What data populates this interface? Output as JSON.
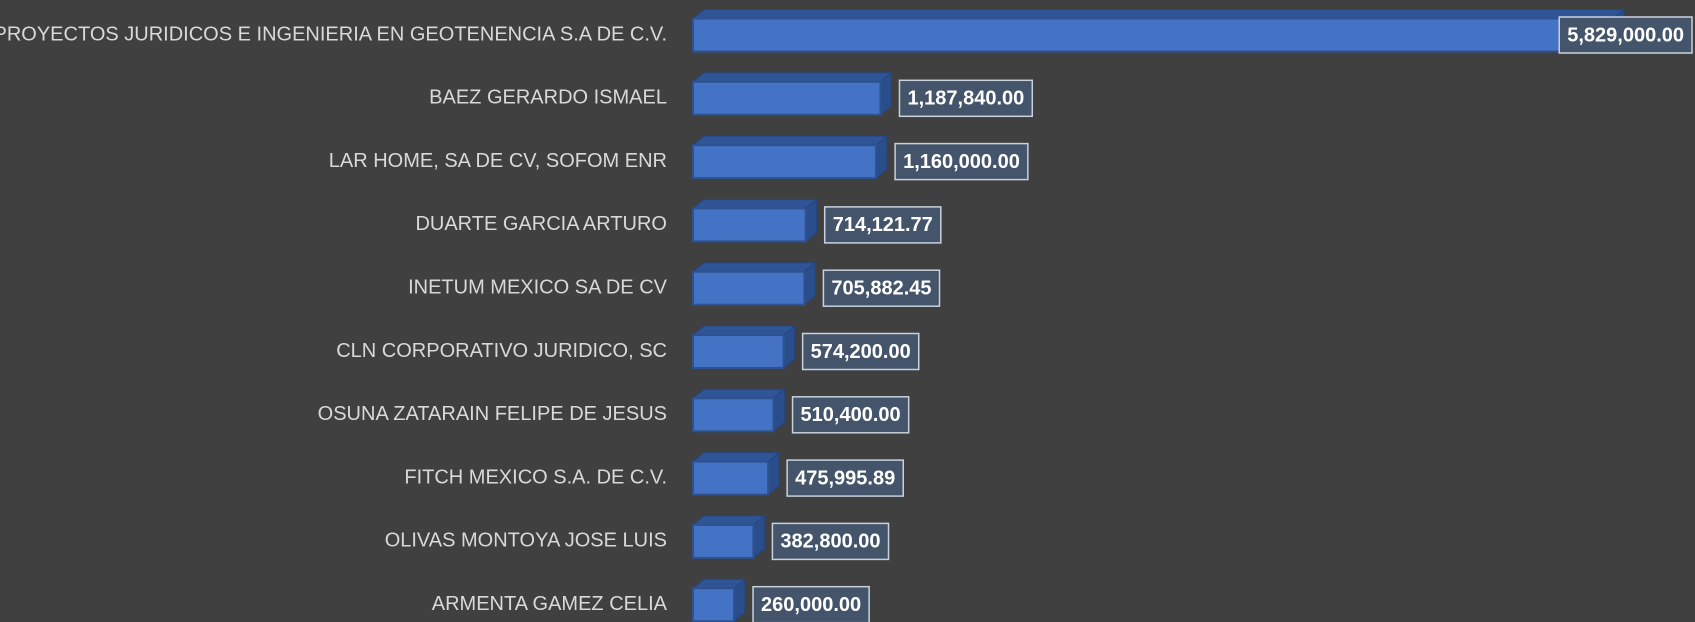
{
  "chart_data": {
    "type": "bar",
    "orientation": "horizontal",
    "color": "#4472c4",
    "categories": [
      "PROYECTOS JURIDICOS E INGENIERIA EN GEOTENENCIA S.A DE C.V.",
      "BAEZ GERARDO ISMAEL",
      "LAR HOME, SA DE CV, SOFOM ENR",
      "DUARTE GARCIA ARTURO",
      "INETUM MEXICO SA DE CV",
      "CLN CORPORATIVO JURIDICO, SC",
      "OSUNA ZATARAIN FELIPE DE JESUS",
      "FITCH MEXICO S.A. DE C.V.",
      "OLIVAS MONTOYA JOSE LUIS",
      "ARMENTA GAMEZ CELIA"
    ],
    "values": [
      5829000,
      1187840,
      1160000,
      714121.77,
      705882.45,
      574200,
      510400,
      475995.89,
      382800,
      260000
    ],
    "value_labels": [
      "5,829,000.00",
      "1,187,840.00",
      "1,160,000.00",
      "714,121.77",
      "705,882.45",
      "574,200.00",
      "510,400.00",
      "475,995.89",
      "382,800.00",
      "260,000.00"
    ]
  }
}
